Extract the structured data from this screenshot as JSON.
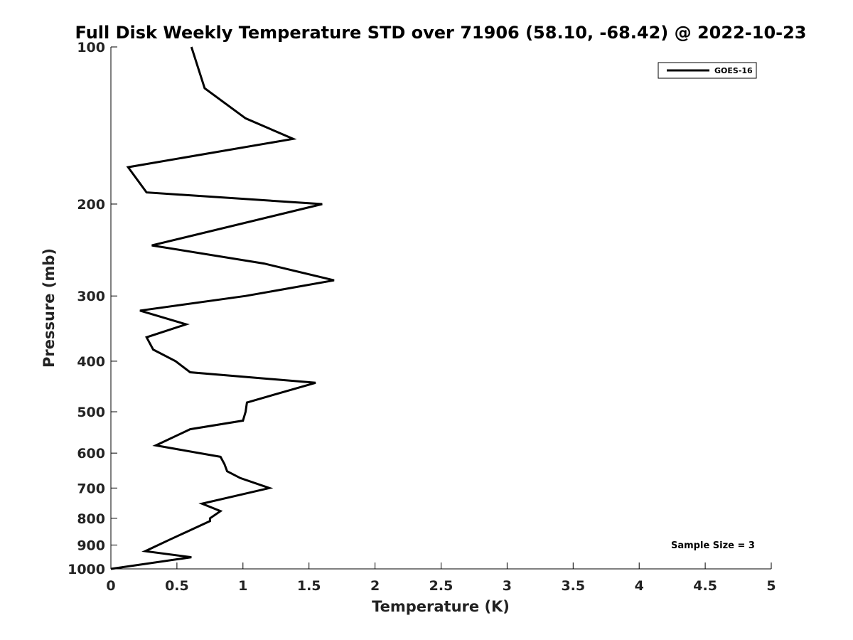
{
  "chart_data": {
    "type": "line",
    "title": "Full Disk Weekly Temperature STD over 71906 (58.10, -68.42) @ 2022-10-23",
    "xlabel": "Temperature (K)",
    "ylabel": "Pressure (mb)",
    "xlim": [
      0,
      5
    ],
    "ylim": [
      1000,
      100
    ],
    "yscale": "log",
    "yreversed": true,
    "xticks": [
      0,
      0.5,
      1,
      1.5,
      2,
      2.5,
      3,
      3.5,
      4,
      4.5,
      5
    ],
    "xtick_labels": [
      "0",
      "0.5",
      "1",
      "1.5",
      "2",
      "2.5",
      "3",
      "3.5",
      "4",
      "4.5",
      "5"
    ],
    "yticks": [
      100,
      200,
      300,
      400,
      500,
      600,
      700,
      800,
      900,
      1000
    ],
    "ytick_labels": [
      "100",
      "200",
      "300",
      "400",
      "500",
      "600",
      "700",
      "800",
      "900",
      "1000"
    ],
    "grid": false,
    "legend": {
      "location": "top-right",
      "entries": [
        "GOES-16"
      ]
    },
    "series": [
      {
        "name": "GOES-16",
        "color": "#000000",
        "x": [
          0.61,
          0.71,
          1.02,
          1.38,
          0.13,
          0.27,
          1.6,
          0.31,
          1.16,
          1.69,
          1.02,
          0.22,
          0.57,
          0.27,
          0.32,
          0.49,
          0.6,
          1.55,
          1.03,
          1.02,
          1.0,
          0.6,
          0.34,
          0.83,
          0.86,
          0.88,
          0.98,
          1.2,
          0.69,
          0.83,
          0.75,
          0.75,
          0.57,
          0.44,
          0.26,
          0.61,
          0.0
        ],
        "y": [
          100,
          120,
          137,
          150,
          170,
          190,
          200,
          240,
          260,
          280,
          300,
          320,
          340,
          360,
          380,
          400,
          420,
          440,
          480,
          500,
          520,
          540,
          580,
          610,
          630,
          650,
          670,
          700,
          750,
          775,
          800,
          810,
          850,
          880,
          925,
          950,
          1000
        ]
      }
    ],
    "annotations": [
      "Sample Size = 3"
    ]
  }
}
